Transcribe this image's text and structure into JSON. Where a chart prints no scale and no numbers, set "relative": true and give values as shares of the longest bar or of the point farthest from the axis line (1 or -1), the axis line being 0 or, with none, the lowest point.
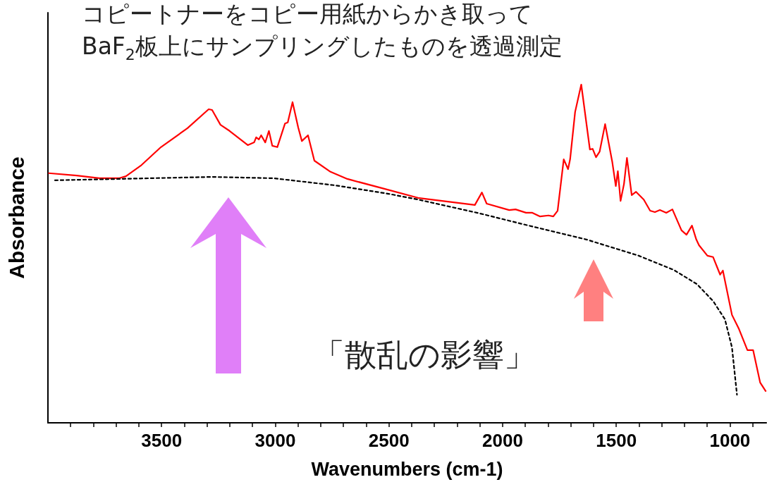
{
  "chart_data": {
    "type": "line",
    "title": "コピートナーをコピー用紙からかき取って",
    "subtitle": "BaF$_{2}$板上にサンプリングしたものを透過測定",
    "xlabel": "Wavenumbers (cm-1)",
    "ylabel": "Absorbance",
    "annotations": [
      "「散乱の影響」"
    ],
    "relative": true,
    "tick_labels": "x",
    "grid": false,
    "marker": "none",
    "xlim": [
      4000,
      840
    ],
    "xticks": [
      {
        "value": 3900,
        "label": null
      },
      {
        "value": 3800,
        "label": null
      },
      {
        "value": 3700,
        "label": null
      },
      {
        "value": 3600,
        "label": null
      },
      3500,
      {
        "value": 3400,
        "label": null
      },
      {
        "value": 3300,
        "label": null
      },
      {
        "value": 3200,
        "label": null
      },
      {
        "value": 3100,
        "label": null
      },
      3000,
      {
        "value": 2900,
        "label": null
      },
      {
        "value": 2800,
        "label": null
      },
      {
        "value": 2700,
        "label": null
      },
      {
        "value": 2600,
        "label": null
      },
      2500,
      {
        "value": 2400,
        "label": null
      },
      {
        "value": 2300,
        "label": null
      },
      {
        "value": 2200,
        "label": null
      },
      {
        "value": 2100,
        "label": null
      },
      2000,
      {
        "value": 1900,
        "label": null
      },
      {
        "value": 1800,
        "label": null
      },
      {
        "value": 1700,
        "label": null
      },
      {
        "value": 1600,
        "label": null
      },
      1500,
      {
        "value": 1400,
        "label": null
      },
      {
        "value": 1300,
        "label": null
      },
      {
        "value": 1200,
        "label": null
      },
      {
        "value": 1100,
        "label": null
      },
      1000,
      {
        "value": 900,
        "label": null
      }
    ],
    "series": [
      {
        "color": "#ff0000",
        "line_style": "solid",
        "x": [
          3996,
          3873,
          3774,
          3688,
          3657,
          3592,
          3503,
          3386,
          3293,
          3278,
          3241,
          3201,
          3121,
          3093,
          3084,
          3072,
          3062,
          3044,
          3028,
          3013,
          2991,
          2957,
          2945,
          2924,
          2899,
          2883,
          2856,
          2828,
          2757,
          2683,
          2532,
          2372,
          2122,
          2091,
          2070,
          1971,
          1943,
          1897,
          1869,
          1835,
          1798,
          1777,
          1758,
          1731,
          1712,
          1703,
          1681,
          1654,
          1616,
          1604,
          1589,
          1573,
          1549,
          1518,
          1502,
          1493,
          1481,
          1466,
          1453,
          1432,
          1413,
          1379,
          1351,
          1330,
          1308,
          1280,
          1253,
          1213,
          1191,
          1167,
          1148,
          1136,
          1099,
          1074,
          1043,
          1031,
          991,
          960,
          923,
          898,
          867,
          843
        ],
        "values": [
          0.738,
          0.731,
          0.723,
          0.723,
          0.729,
          0.76,
          0.815,
          0.871,
          0.927,
          0.925,
          0.881,
          0.863,
          0.821,
          0.829,
          0.844,
          0.838,
          0.85,
          0.829,
          0.863,
          0.819,
          0.815,
          0.885,
          0.888,
          0.948,
          0.873,
          0.833,
          0.85,
          0.775,
          0.742,
          0.721,
          0.694,
          0.665,
          0.644,
          0.681,
          0.648,
          0.629,
          0.631,
          0.621,
          0.621,
          0.61,
          0.613,
          0.61,
          0.627,
          0.779,
          0.75,
          0.779,
          0.919,
          1,
          0.808,
          0.81,
          0.785,
          0.802,
          0.883,
          0.773,
          0.7,
          0.744,
          0.656,
          0.706,
          0.783,
          0.673,
          0.683,
          0.66,
          0.627,
          0.623,
          0.629,
          0.621,
          0.631,
          0.569,
          0.556,
          0.583,
          0.542,
          0.525,
          0.494,
          0.49,
          0.438,
          0.45,
          0.319,
          0.277,
          0.215,
          0.215,
          0.119,
          0.094
        ]
      },
      {
        "color": "#000000",
        "line_style": "dashed",
        "x": [
          3969,
          3688,
          3278,
          3007,
          2736,
          2501,
          2372,
          2100,
          1885,
          1632,
          1401,
          1247,
          1145,
          1074,
          1022,
          991,
          969
        ],
        "values": [
          0.717,
          0.721,
          0.727,
          0.723,
          0.702,
          0.677,
          0.66,
          0.619,
          0.583,
          0.542,
          0.494,
          0.452,
          0.41,
          0.36,
          0.306,
          0.223,
          0.083
        ]
      }
    ]
  }
}
